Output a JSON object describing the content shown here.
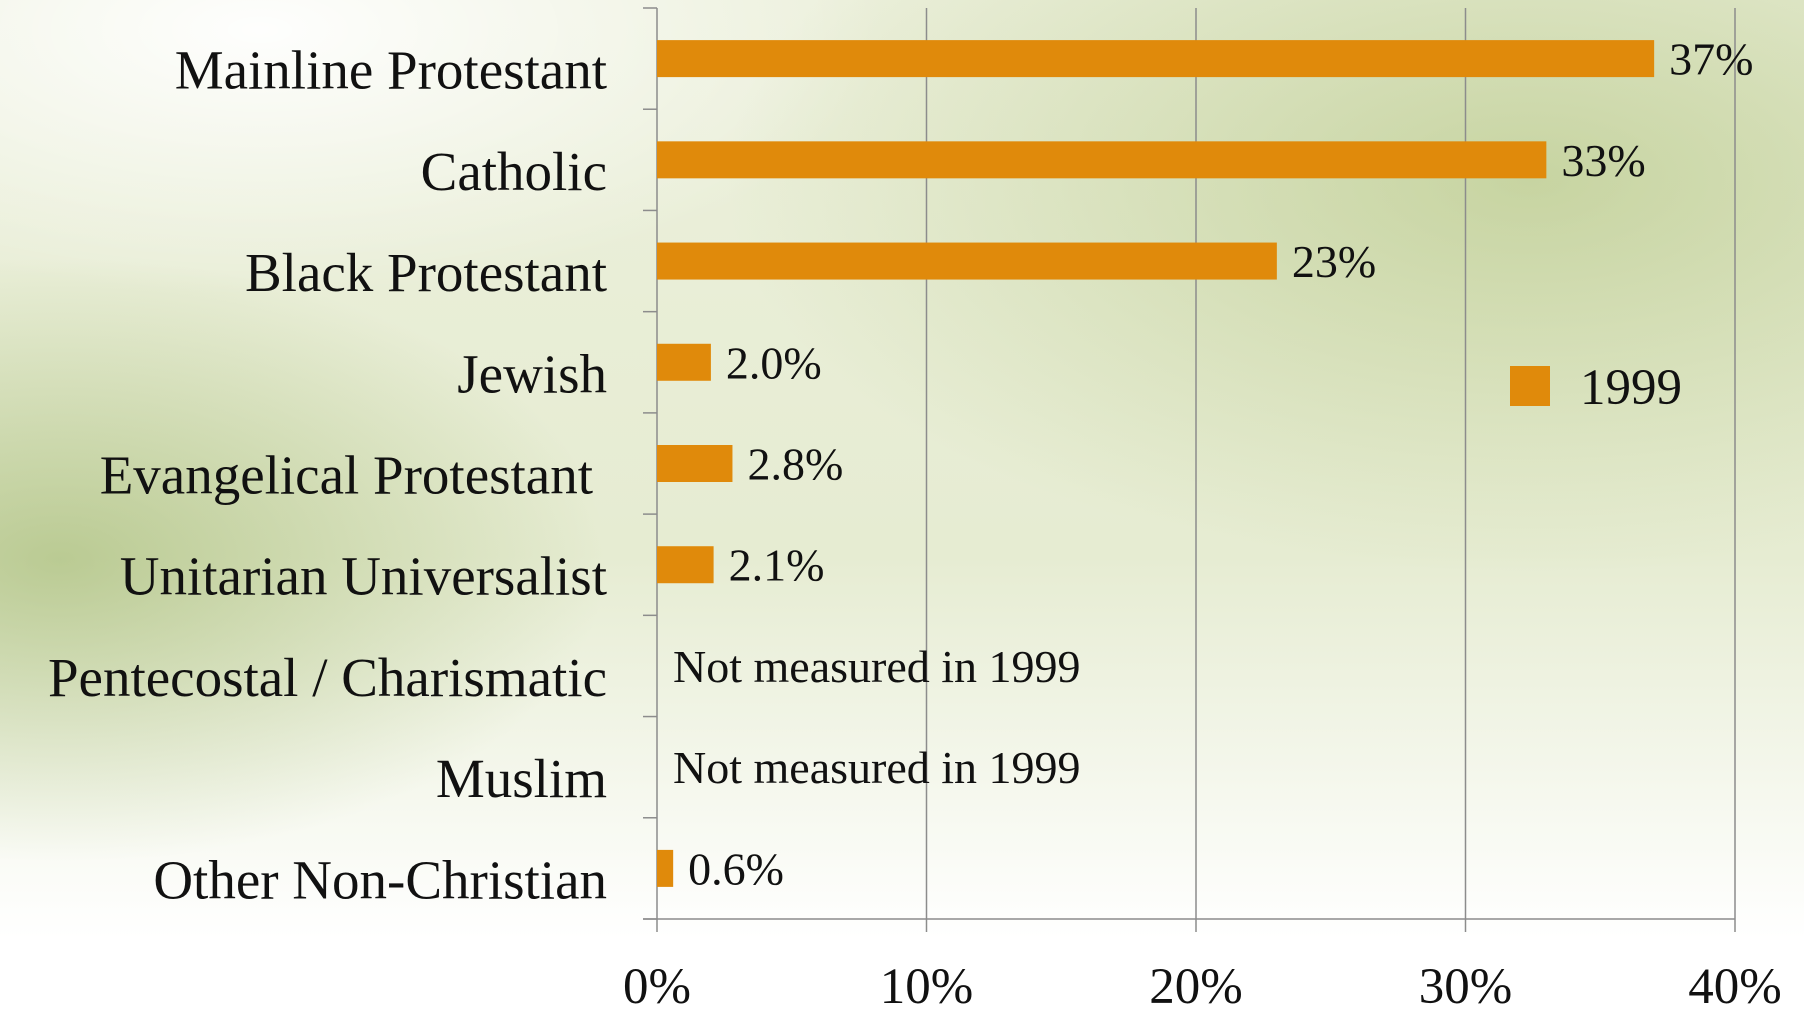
{
  "chart_data": {
    "type": "bar",
    "orientation": "horizontal",
    "title": "",
    "xlabel": "",
    "ylabel": "",
    "xlim": [
      0,
      0.4
    ],
    "categories": [
      "Mainline Protestant",
      "Catholic",
      "Black Protestant",
      "Jewish",
      "Evangelical Protestant",
      "Unitarian Universalist",
      "Pentecostal / Charismatic",
      "Muslim",
      "Other Non-Christian"
    ],
    "series": [
      {
        "name": "1999",
        "color": "#e08a0b",
        "values": [
          0.37,
          0.33,
          0.23,
          0.02,
          0.028,
          0.021,
          null,
          null,
          0.006
        ],
        "data_labels": [
          "37%",
          "33%",
          "23%",
          "2.0%",
          "2.8%",
          "2.1%",
          "Not measured in 1999",
          "Not measured in 1999",
          "0.6%"
        ]
      }
    ],
    "x_ticks": [
      0,
      0.1,
      0.2,
      0.3,
      0.4
    ],
    "x_tick_labels": [
      "0%",
      "10%",
      "20%",
      "30%",
      "40%"
    ],
    "grid": "vertical",
    "legend": {
      "position": "right",
      "entries": [
        "1999"
      ]
    }
  }
}
